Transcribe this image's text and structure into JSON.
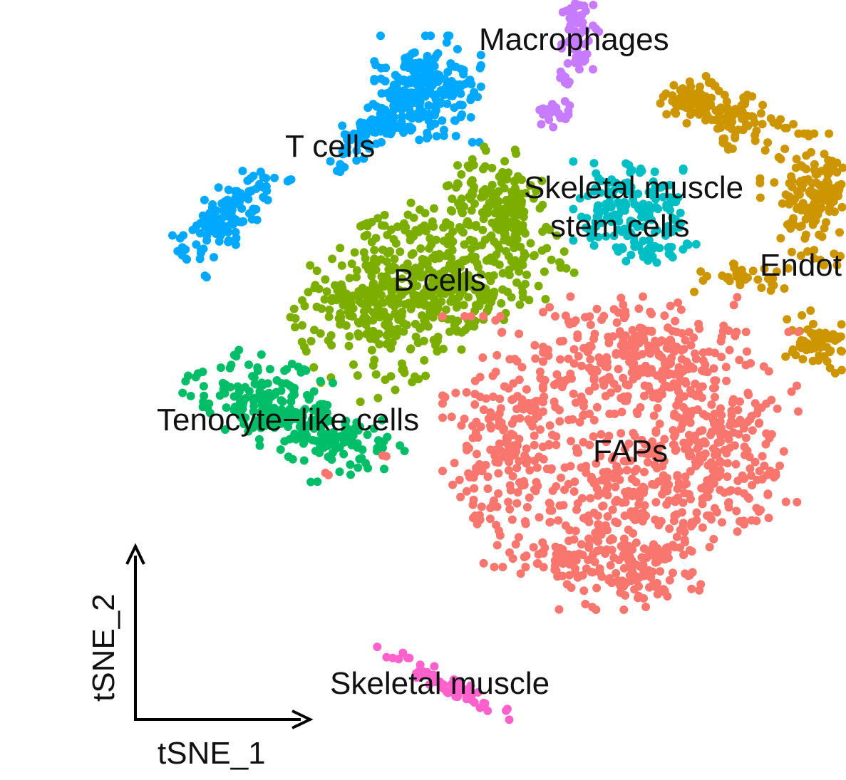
{
  "chart_data": {
    "type": "scatter",
    "xlabel": "tSNE_1",
    "ylabel": "tSNE_2",
    "clusters": [
      {
        "name": "Macrophages",
        "color": "#c77cff"
      },
      {
        "name": "T cells",
        "color": "#00a9ff"
      },
      {
        "name": "Endothelial cells",
        "label": "Endot",
        "color": "#cd9600"
      },
      {
        "name": "Skeletal muscle stem cells",
        "label_lines": [
          "Skeletal muscle",
          "stem cells"
        ],
        "color": "#00bfc4"
      },
      {
        "name": "B cells",
        "color": "#7cae00"
      },
      {
        "name": "Tenocyte-like cells",
        "label": "Tenocyte−like cells",
        "color": "#00be67"
      },
      {
        "name": "FAPs",
        "color": "#f8766d"
      },
      {
        "name": "Skeletal muscle",
        "color": "#ff61cc"
      }
    ]
  }
}
